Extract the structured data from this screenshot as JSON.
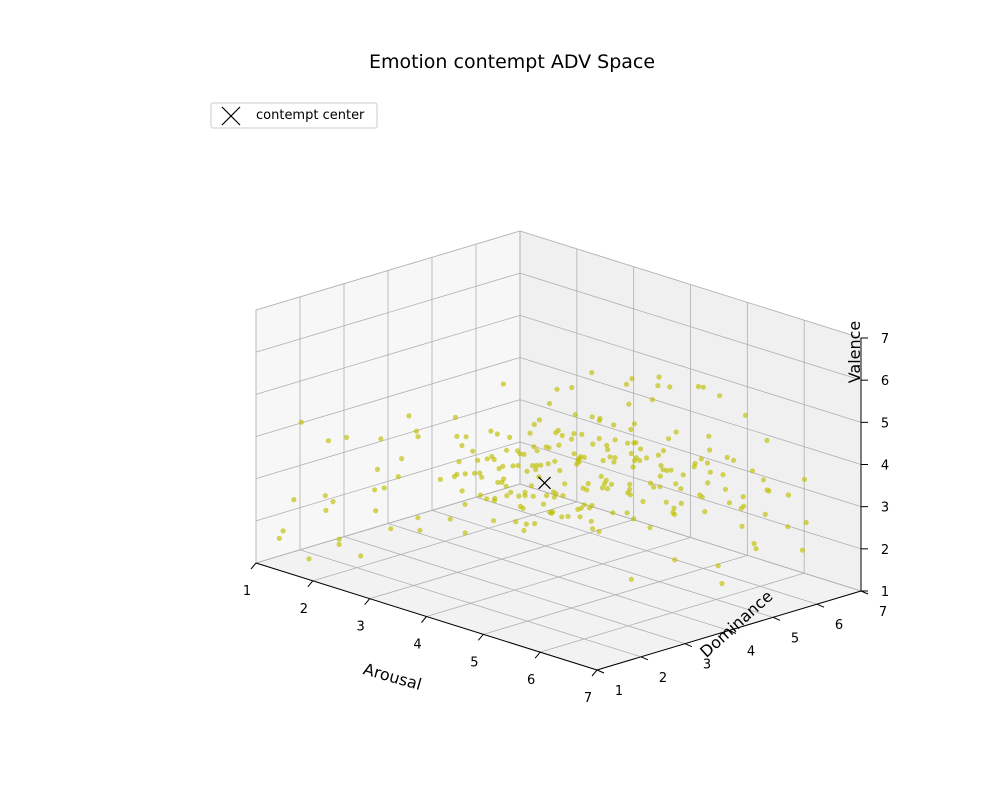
{
  "chart_data": {
    "type": "scatter",
    "projection": "3d",
    "title": "Emotion contempt ADV Space",
    "xlabel": "Arousal",
    "ylabel": "Dominance",
    "zlabel": "Valence",
    "xlim": [
      1,
      7
    ],
    "ylim": [
      1,
      7
    ],
    "zlim": [
      1,
      7
    ],
    "xticks": [
      1,
      2,
      3,
      4,
      5,
      6,
      7
    ],
    "yticks": [
      1,
      2,
      3,
      4,
      5,
      6,
      7
    ],
    "zticks": [
      1,
      2,
      3,
      4,
      5,
      6,
      7
    ],
    "grid": true,
    "legend_position": "top-left",
    "point_color": "#bfbf00",
    "center": {
      "name": "contempt center",
      "marker": "x",
      "color": "#000000",
      "x": 3.6,
      "y": 4.2,
      "z": 3.0
    },
    "series": [
      {
        "points": [
          [
            3.2,
            4.0,
            3.3
          ],
          [
            3.5,
            4.2,
            3.1
          ],
          [
            3.8,
            4.4,
            3.0
          ],
          [
            4.0,
            4.1,
            2.9
          ],
          [
            3.6,
            3.8,
            3.4
          ],
          [
            3.3,
            4.5,
            3.2
          ],
          [
            3.9,
            4.6,
            3.5
          ],
          [
            4.2,
            4.3,
            3.1
          ],
          [
            3.4,
            3.6,
            2.8
          ],
          [
            3.7,
            4.8,
            3.3
          ],
          [
            4.1,
            3.9,
            3.6
          ],
          [
            3.0,
            4.1,
            2.7
          ],
          [
            3.5,
            5.0,
            3.4
          ],
          [
            4.3,
            4.7,
            3.2
          ],
          [
            3.8,
            3.5,
            3.0
          ],
          [
            3.1,
            3.7,
            3.5
          ],
          [
            4.4,
            4.0,
            2.8
          ],
          [
            3.6,
            4.3,
            3.8
          ],
          [
            3.9,
            5.1,
            3.0
          ],
          [
            4.0,
            4.5,
            3.7
          ],
          [
            3.2,
            4.8,
            3.1
          ],
          [
            3.4,
            4.2,
            2.6
          ],
          [
            4.5,
            4.4,
            3.3
          ],
          [
            3.7,
            3.9,
            3.9
          ],
          [
            4.2,
            5.0,
            3.5
          ],
          [
            3.0,
            3.5,
            3.2
          ],
          [
            3.8,
            4.9,
            2.7
          ],
          [
            4.1,
            3.6,
            3.1
          ],
          [
            3.3,
            5.2,
            3.6
          ],
          [
            4.6,
            4.8,
            3.0
          ],
          [
            3.5,
            3.4,
            3.3
          ],
          [
            4.3,
            4.2,
            3.9
          ],
          [
            2.8,
            4.2,
            3.0
          ],
          [
            3.9,
            5.3,
            3.4
          ],
          [
            4.0,
            3.8,
            2.6
          ],
          [
            3.6,
            4.6,
            4.0
          ],
          [
            4.4,
            5.1,
            2.9
          ],
          [
            3.1,
            4.4,
            2.5
          ],
          [
            4.7,
            4.3,
            3.4
          ],
          [
            3.4,
            3.9,
            3.7
          ],
          [
            3.7,
            5.4,
            3.2
          ],
          [
            4.2,
            3.4,
            3.0
          ],
          [
            2.9,
            3.8,
            3.4
          ],
          [
            4.5,
            5.2,
            3.6
          ],
          [
            3.8,
            4.1,
            2.4
          ],
          [
            3.2,
            5.5,
            3.0
          ],
          [
            4.8,
            4.6,
            3.1
          ],
          [
            3.5,
            3.2,
            2.9
          ],
          [
            4.1,
            5.6,
            3.3
          ],
          [
            3.6,
            3.6,
            3.6
          ],
          [
            4.3,
            4.9,
            4.1
          ],
          [
            2.7,
            4.5,
            3.3
          ],
          [
            3.9,
            4.0,
            2.5
          ],
          [
            4.6,
            3.9,
            3.5
          ],
          [
            3.3,
            4.9,
            3.9
          ],
          [
            4.0,
            5.0,
            2.8
          ],
          [
            3.0,
            4.7,
            3.0
          ],
          [
            4.9,
            5.0,
            3.2
          ],
          [
            3.7,
            3.3,
            3.1
          ],
          [
            4.4,
            3.7,
            2.7
          ],
          [
            3.4,
            5.7,
            3.5
          ],
          [
            4.2,
            5.5,
            3.8
          ],
          [
            2.6,
            3.9,
            2.9
          ],
          [
            3.8,
            4.7,
            2.3
          ],
          [
            4.7,
            5.4,
            3.0
          ],
          [
            3.1,
            5.1,
            3.7
          ],
          [
            4.0,
            3.5,
            3.8
          ],
          [
            3.5,
            4.0,
            4.2
          ],
          [
            4.5,
            4.1,
            2.5
          ],
          [
            2.9,
            4.9,
            2.8
          ],
          [
            5.0,
            4.8,
            3.4
          ],
          [
            3.6,
            5.8,
            3.1
          ],
          [
            4.3,
            3.5,
            3.3
          ],
          [
            3.2,
            3.4,
            2.7
          ],
          [
            4.8,
            4.2,
            2.8
          ],
          [
            3.9,
            5.7,
            3.6
          ],
          [
            4.1,
            4.4,
            4.3
          ],
          [
            2.8,
            3.6,
            3.6
          ],
          [
            3.7,
            3.1,
            3.4
          ],
          [
            4.6,
            5.6,
            3.3
          ],
          [
            3.3,
            4.1,
            2.3
          ],
          [
            4.4,
            5.8,
            3.0
          ],
          [
            5.1,
            4.5,
            3.1
          ],
          [
            3.0,
            5.3,
            3.3
          ],
          [
            4.2,
            3.2,
            2.6
          ],
          [
            3.5,
            5.9,
            3.8
          ],
          [
            4.9,
            5.3,
            3.5
          ],
          [
            2.7,
            4.3,
            2.6
          ],
          [
            3.8,
            3.7,
            4.1
          ],
          [
            4.0,
            6.0,
            3.2
          ],
          [
            5.2,
            4.9,
            3.0
          ],
          [
            3.4,
            3.0,
            3.0
          ],
          [
            4.5,
            3.3,
            3.4
          ],
          [
            3.1,
            5.6,
            2.9
          ],
          [
            4.7,
            3.8,
            3.0
          ],
          [
            3.6,
            4.9,
            4.4
          ],
          [
            2.5,
            4.1,
            3.1
          ],
          [
            4.3,
            6.0,
            3.5
          ],
          [
            5.0,
            5.5,
            2.7
          ],
          [
            3.9,
            3.4,
            2.4
          ],
          [
            4.1,
            6.2,
            3.0
          ],
          [
            3.2,
            4.6,
            4.2
          ],
          [
            4.8,
            5.8,
            3.2
          ],
          [
            2.9,
            3.3,
            3.2
          ],
          [
            5.3,
            5.1,
            3.3
          ],
          [
            3.7,
            6.1,
            3.4
          ],
          [
            4.6,
            4.0,
            2.4
          ],
          [
            3.0,
            3.9,
            4.0
          ],
          [
            4.4,
            4.6,
            4.0
          ],
          [
            2.6,
            4.7,
            3.5
          ],
          [
            5.1,
            4.2,
            3.6
          ],
          [
            3.5,
            2.9,
            3.5
          ],
          [
            4.2,
            6.3,
            2.9
          ],
          [
            3.8,
            5.2,
            4.3
          ],
          [
            5.4,
            5.4,
            3.1
          ],
          [
            4.0,
            3.1,
            3.2
          ],
          [
            3.3,
            6.0,
            3.2
          ],
          [
            4.9,
            3.6,
            3.2
          ],
          [
            2.8,
            5.0,
            3.8
          ],
          [
            4.7,
            6.2,
            3.3
          ],
          [
            5.5,
            4.7,
            2.9
          ],
          [
            3.6,
            3.0,
            4.0
          ],
          [
            4.5,
            5.0,
            4.4
          ],
          [
            3.1,
            4.3,
            2.2
          ],
          [
            5.2,
            5.9,
            3.4
          ],
          [
            4.3,
            3.0,
            3.6
          ],
          [
            2.4,
            3.7,
            2.8
          ],
          [
            3.9,
            6.4,
            3.1
          ],
          [
            5.6,
            5.2,
            3.2
          ],
          [
            4.1,
            4.8,
            4.5
          ],
          [
            3.4,
            3.3,
            2.3
          ],
          [
            4.8,
            6.4,
            3.6
          ],
          [
            5.3,
            4.4,
            2.6
          ],
          [
            2.7,
            5.4,
            3.1
          ],
          [
            4.6,
            3.3,
            2.9
          ],
          [
            3.7,
            5.5,
            2.5
          ],
          [
            5.7,
            5.6,
            3.3
          ],
          [
            4.0,
            6.5,
            3.5
          ],
          [
            3.2,
            5.8,
            3.9
          ],
          [
            4.4,
            3.4,
            4.1
          ],
          [
            5.0,
            6.1,
            3.0
          ],
          [
            2.5,
            4.4,
            3.7
          ],
          [
            5.4,
            3.9,
            3.0
          ],
          [
            3.8,
            2.8,
            3.1
          ],
          [
            4.2,
            5.3,
            2.2
          ],
          [
            5.8,
            5.0,
            3.0
          ],
          [
            3.5,
            6.3,
            3.0
          ],
          [
            4.9,
            4.7,
            4.2
          ],
          [
            3.0,
            3.1,
            2.9
          ],
          [
            5.5,
            5.8,
            3.5
          ],
          [
            4.7,
            3.0,
            3.5
          ],
          [
            2.3,
            4.0,
            3.4
          ],
          [
            6.0,
            5.3,
            3.2
          ],
          [
            4.5,
            6.6,
            3.2
          ],
          [
            3.3,
            4.7,
            4.6
          ],
          [
            5.1,
            3.5,
            2.7
          ],
          [
            3.9,
            3.2,
            4.2
          ],
          [
            5.9,
            5.7,
            2.9
          ],
          [
            2.8,
            5.9,
            3.3
          ],
          [
            4.3,
            6.7,
            2.9
          ],
          [
            5.6,
            4.6,
            3.7
          ],
          [
            3.6,
            5.1,
            2.2
          ],
          [
            6.1,
            5.5,
            3.1
          ],
          [
            4.8,
            6.8,
            3.3
          ],
          [
            3.1,
            2.9,
            3.7
          ],
          [
            5.3,
            6.3,
            3.6
          ],
          [
            4.0,
            5.6,
            4.6
          ],
          [
            2.6,
            3.5,
            3.9
          ],
          [
            6.2,
            5.9,
            3.4
          ],
          [
            5.0,
            3.2,
            3.1
          ],
          [
            3.4,
            6.5,
            3.6
          ],
          [
            5.7,
            6.0,
            3.0
          ],
          [
            4.6,
            5.9,
            4.1
          ],
          [
            2.4,
            4.8,
            2.7
          ],
          [
            6.3,
            5.2,
            2.8
          ],
          [
            3.7,
            3.6,
            2.1
          ],
          [
            5.8,
            4.3,
            3.3
          ],
          [
            4.1,
            2.9,
            2.7
          ],
          [
            6.0,
            6.2,
            3.2
          ],
          [
            4.4,
            6.9,
            3.6
          ],
          [
            3.2,
            5.0,
            4.8
          ],
          [
            5.4,
            6.6,
            3.3
          ],
          [
            2.9,
            6.2,
            3.0
          ],
          [
            6.4,
            5.6,
            3.0
          ],
          [
            1.3,
            2.2,
            2.0
          ],
          [
            1.6,
            1.8,
            2.6
          ],
          [
            1.1,
            1.4,
            1.5
          ],
          [
            1.9,
            2.6,
            3.1
          ],
          [
            1.4,
            1.1,
            1.9
          ],
          [
            2.1,
            2.3,
            2.3
          ],
          [
            1.2,
            2.8,
            3.5
          ],
          [
            1.7,
            1.3,
            1.3
          ],
          [
            2.3,
            3.0,
            2.0
          ],
          [
            1.5,
            2.0,
            3.8
          ],
          [
            2.0,
            1.6,
            1.8
          ],
          [
            1.8,
            3.2,
            2.7
          ],
          [
            2.4,
            2.5,
            3.6
          ],
          [
            1.1,
            1.9,
            4.1
          ],
          [
            2.2,
            1.2,
            2.9
          ],
          [
            1.4,
            3.4,
            2.2
          ],
          [
            2.5,
            1.9,
            4.3
          ],
          [
            1.9,
            2.9,
            1.6
          ],
          [
            2.6,
            3.5,
            3.0
          ],
          [
            1.2,
            1.6,
            2.4
          ],
          [
            2.8,
            2.4,
            2.1
          ],
          [
            1.6,
            3.7,
            3.9
          ],
          [
            2.7,
            1.5,
            3.3
          ],
          [
            2.0,
            3.9,
            2.5
          ],
          [
            3.0,
            2.1,
            4.5
          ],
          [
            2.3,
            1.7,
            1.5
          ],
          [
            1.3,
            2.5,
            1.1
          ],
          [
            2.9,
            3.3,
            1.8
          ],
          [
            1.5,
            4.0,
            3.4
          ],
          [
            3.1,
            2.7,
            2.4
          ],
          [
            6.2,
            3.8,
            2.4
          ],
          [
            6.5,
            4.4,
            2.2
          ],
          [
            5.9,
            3.2,
            2.0
          ],
          [
            6.7,
            5.0,
            2.5
          ],
          [
            6.0,
            4.8,
            4.3
          ],
          [
            6.4,
            3.5,
            3.7
          ],
          [
            6.8,
            4.1,
            2.0
          ],
          [
            5.6,
            3.7,
            4.6
          ],
          [
            6.6,
            5.3,
            4.0
          ],
          [
            6.9,
            4.7,
            2.8
          ],
          [
            5.2,
            6.7,
            4.5
          ],
          [
            5.8,
            6.9,
            2.8
          ],
          [
            4.9,
            6.5,
            4.9
          ],
          [
            6.1,
            6.5,
            2.3
          ],
          [
            5.5,
            6.8,
            4.0
          ],
          [
            3.6,
            6.8,
            4.7
          ],
          [
            4.2,
            6.0,
            5.0
          ],
          [
            4.8,
            5.1,
            5.2
          ],
          [
            5.0,
            6.0,
            5.3
          ],
          [
            3.9,
            5.8,
            5.1
          ],
          [
            4.5,
            4.9,
            5.5
          ],
          [
            5.3,
            5.5,
            5.6
          ],
          [
            4.0,
            4.3,
            5.4
          ],
          [
            3.5,
            5.4,
            5.2
          ],
          [
            6.5,
            6.4,
            2.6
          ],
          [
            6.9,
            5.8,
            2.3
          ],
          [
            6.7,
            6.1,
            3.8
          ],
          [
            2.1,
            5.2,
            4.4
          ],
          [
            1.8,
            4.5,
            3.7
          ],
          [
            2.2,
            4.2,
            1.9
          ],
          [
            2.0,
            5.8,
            2.5
          ],
          [
            1.6,
            5.0,
            3.0
          ],
          [
            4.1,
            6.4,
            4.8
          ],
          [
            3.3,
            6.6,
            2.5
          ]
        ]
      }
    ]
  }
}
